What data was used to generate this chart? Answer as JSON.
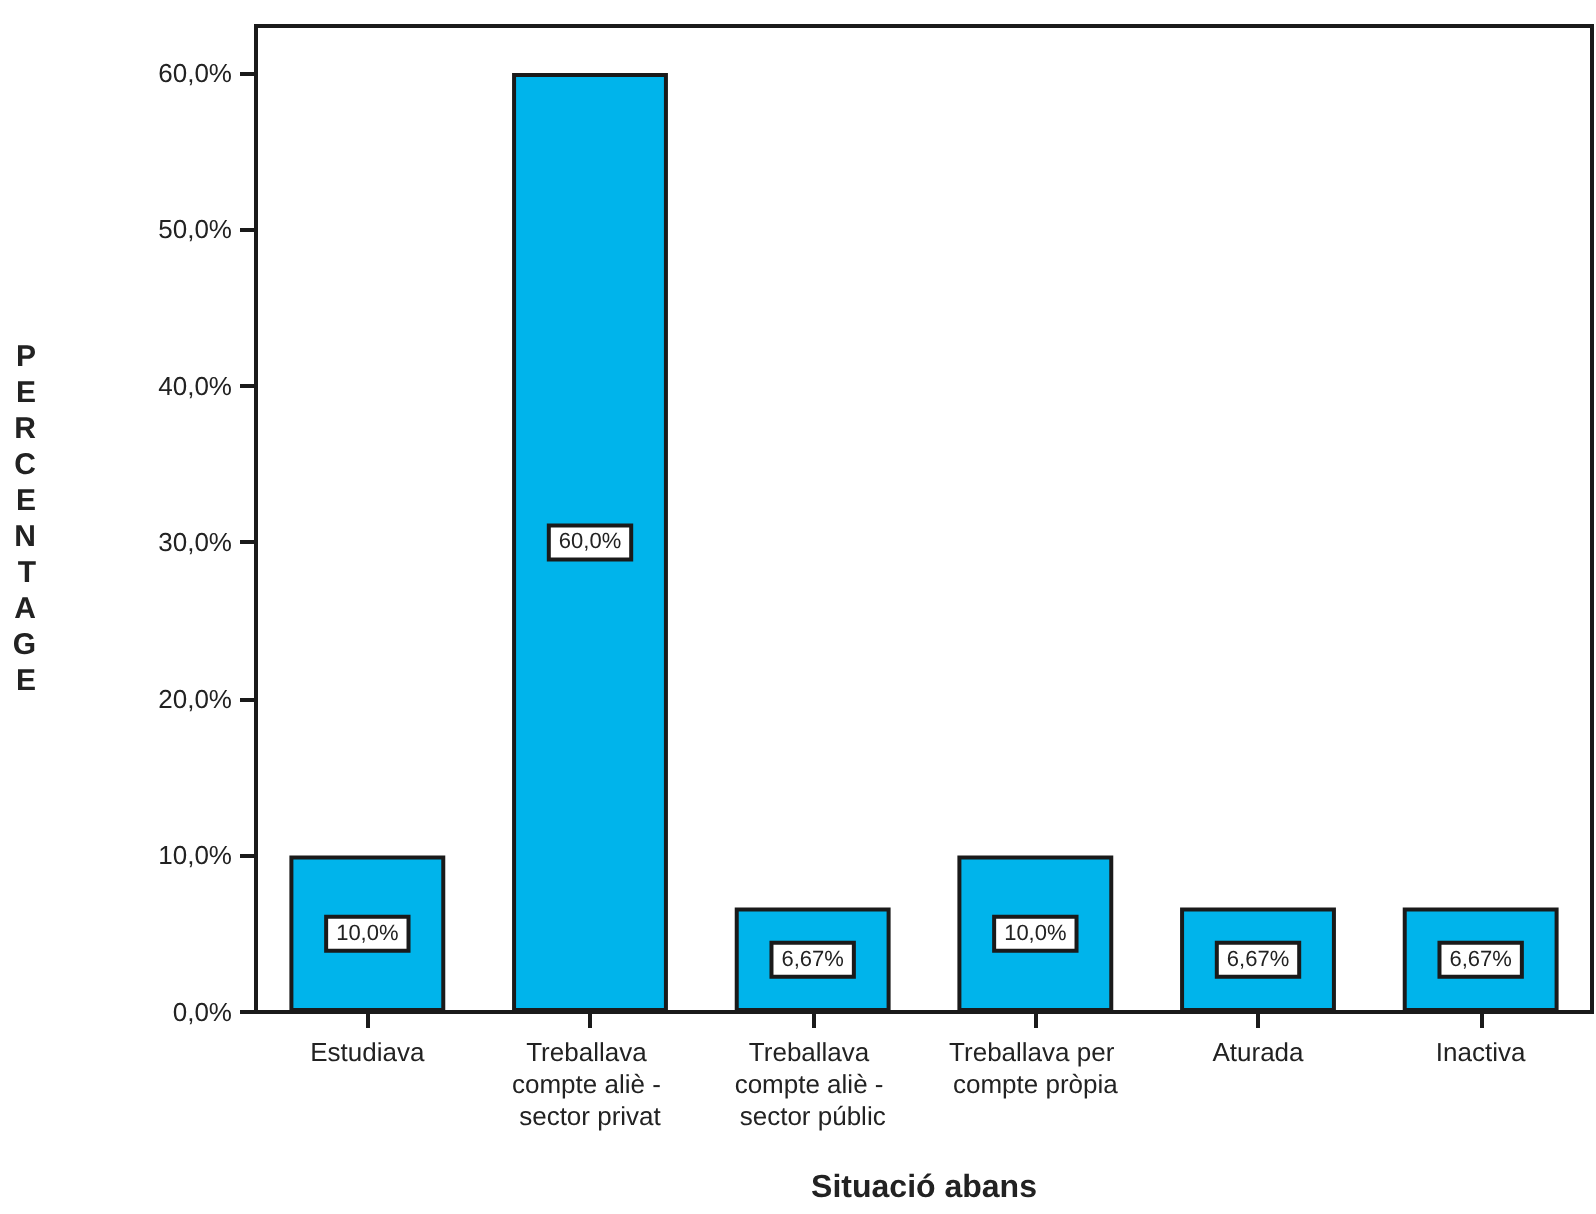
{
  "chart_data": {
    "type": "bar",
    "xlabel": "Situació abans",
    "ylabel": "PERCENTAGE",
    "categories": [
      "Estudiava",
      "Treballava compte aliè - sector privat",
      "Treballava compte aliè - sector públic",
      "Treballava per compte pròpia",
      "Aturada",
      "Inactiva"
    ],
    "values": [
      10,
      60,
      6.67,
      10,
      6.67,
      6.67
    ],
    "value_labels": [
      "10,0%",
      "60,0%",
      "6,67%",
      "10,0%",
      "6,67%",
      "6,67%"
    ],
    "color": "#00b4eb",
    "ylim": [
      0,
      63
    ],
    "yticks": [
      {
        "value": 0,
        "label": "0,0%"
      },
      {
        "value": 10,
        "label": "10,0%"
      },
      {
        "value": 20,
        "label": "20,0%"
      },
      {
        "value": 30,
        "label": "30,0%"
      },
      {
        "value": 40,
        "label": "40,0%"
      },
      {
        "value": 50,
        "label": "50,0%"
      },
      {
        "value": 60,
        "label": "60,0%"
      }
    ],
    "grid": false
  }
}
